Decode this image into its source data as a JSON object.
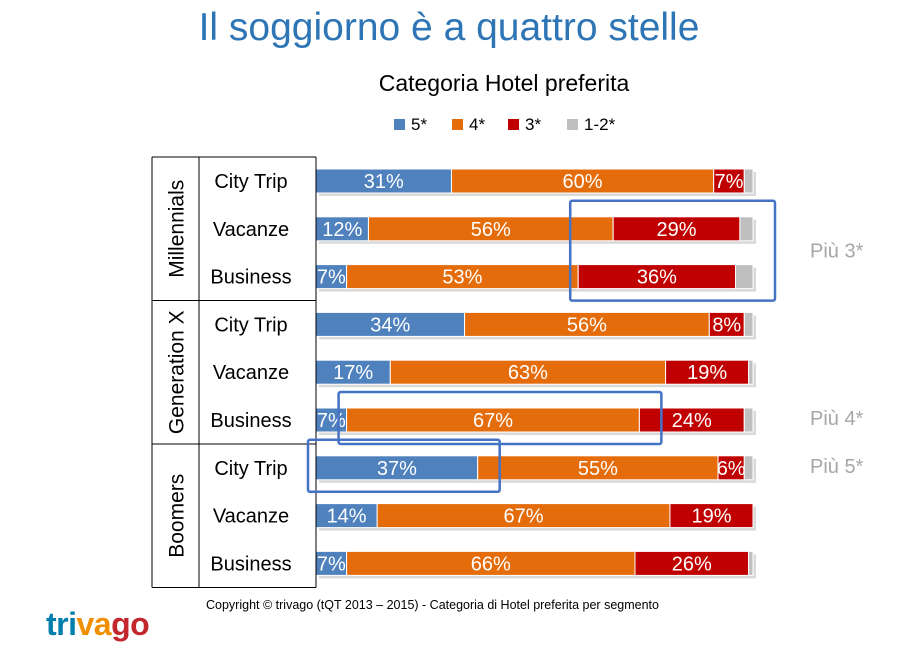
{
  "slide_title": "Il soggiorno è a quattro stelle",
  "footer": "Copyright © trivago (tQT 2013 – 2015)  - Categoria di Hotel preferita per segmento",
  "logo": {
    "part1": "tri",
    "part2": "va",
    "part3": "go"
  },
  "chart_data": {
    "type": "bar",
    "orientation": "horizontal",
    "stacked": true,
    "title": "Categoria Hotel preferita",
    "legend_position": "top",
    "series": [
      {
        "name": "5*",
        "color": "#4F81BD"
      },
      {
        "name": "4*",
        "color": "#E46C0A"
      },
      {
        "name": "3*",
        "color": "#C00000"
      },
      {
        "name": "1-2*",
        "color": "#BFBFBF"
      }
    ],
    "groups": [
      {
        "name": "Millennials",
        "rows": [
          {
            "label": "City Trip",
            "values": [
              31,
              60,
              7,
              2
            ],
            "labels": [
              "31%",
              "60%",
              "7%",
              ""
            ]
          },
          {
            "label": "Vacanze",
            "values": [
              12,
              56,
              29,
              3
            ],
            "labels": [
              "12%",
              "56%",
              "29%",
              ""
            ]
          },
          {
            "label": "Business",
            "values": [
              7,
              53,
              36,
              4
            ],
            "labels": [
              "7%",
              "53%",
              "36%",
              ""
            ]
          }
        ]
      },
      {
        "name": "Generation X",
        "rows": [
          {
            "label": "City Trip",
            "values": [
              34,
              56,
              8,
              2
            ],
            "labels": [
              "34%",
              "56%",
              "8%",
              ""
            ]
          },
          {
            "label": "Vacanze",
            "values": [
              17,
              63,
              19,
              1
            ],
            "labels": [
              "17%",
              "63%",
              "19%",
              ""
            ]
          },
          {
            "label": "Business",
            "values": [
              7,
              67,
              24,
              2
            ],
            "labels": [
              "7%",
              "67%",
              "24%",
              ""
            ]
          }
        ]
      },
      {
        "name": "Boomers",
        "rows": [
          {
            "label": "City Trip",
            "values": [
              37,
              55,
              6,
              2
            ],
            "labels": [
              "37%",
              "55%",
              "6%",
              ""
            ]
          },
          {
            "label": "Vacanze",
            "values": [
              14,
              67,
              19,
              0
            ],
            "labels": [
              "14%",
              "67%",
              "19%",
              ""
            ]
          },
          {
            "label": "Business",
            "values": [
              7,
              66,
              26,
              1
            ],
            "labels": [
              "7%",
              "66%",
              "26%",
              ""
            ]
          }
        ]
      }
    ],
    "annotations": [
      {
        "text": "Più 3*",
        "group": 0,
        "rows": [
          1,
          2
        ],
        "series_range": [
          2,
          3
        ]
      },
      {
        "text": "Più 4*",
        "group": 1,
        "rows": [
          2,
          2
        ],
        "series_range": [
          1,
          1
        ]
      },
      {
        "text": "Più 5*",
        "group": 2,
        "rows": [
          0,
          0
        ],
        "series_range": [
          0,
          0
        ]
      }
    ],
    "annotation_box_color": "#4472C4",
    "annotation_text_color": "#A6A6A6"
  }
}
